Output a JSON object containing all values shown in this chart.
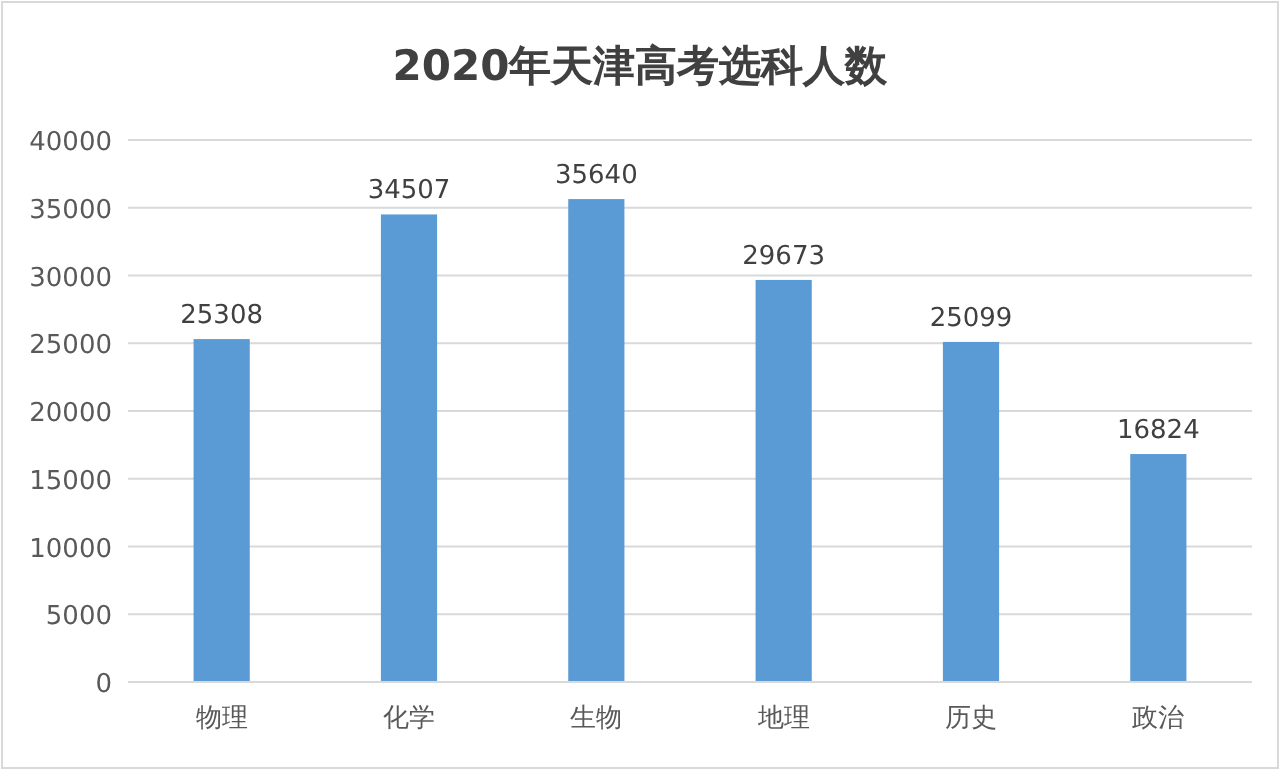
{
  "chart_data": {
    "type": "bar",
    "title": "2020年天津高考选科人数",
    "categories": [
      "物理",
      "化学",
      "生物",
      "地理",
      "历史",
      "政治"
    ],
    "values": [
      25308,
      34507,
      35640,
      29673,
      25099,
      16824
    ],
    "color": "#5b9bd5",
    "ylim": [
      0,
      40000
    ],
    "yticks": [
      0,
      5000,
      10000,
      15000,
      20000,
      25000,
      30000,
      35000,
      40000
    ],
    "grid": "y",
    "data_labels": true
  }
}
